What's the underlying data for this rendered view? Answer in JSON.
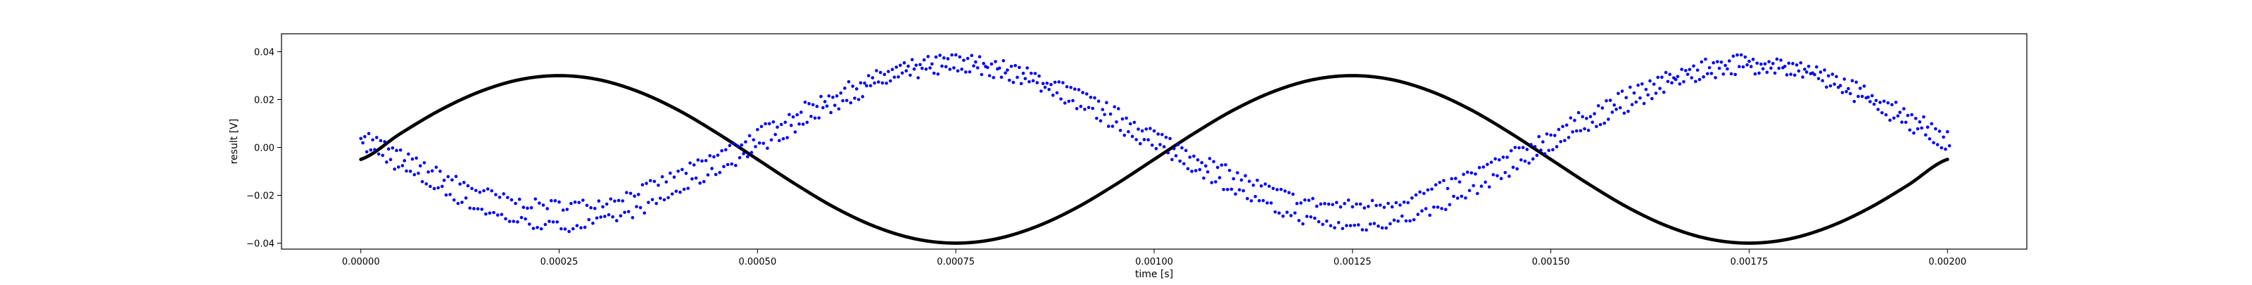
{
  "chart_data": {
    "type": "scatter",
    "title": "",
    "xlabel": "time [s]",
    "ylabel": "result [V]",
    "xlim": [
      -0.0001,
      0.0021
    ],
    "ylim": [
      -0.0425,
      0.0475
    ],
    "grid": false,
    "legend": "none",
    "x_ticks": [
      0.0,
      0.00025,
      0.0005,
      0.00075,
      0.001,
      0.00125,
      0.0015,
      0.00175,
      0.002
    ],
    "x_tick_labels": [
      "0.00000",
      "0.00025",
      "0.00050",
      "0.00075",
      "0.00100",
      "0.00125",
      "0.00150",
      "0.00175",
      "0.00200"
    ],
    "y_ticks": [
      -0.04,
      -0.02,
      0.0,
      0.02,
      0.04
    ],
    "y_tick_labels": [
      "−0.04",
      "−0.02",
      "0.00",
      "0.02",
      "0.04"
    ],
    "series": [
      {
        "color": "#000000",
        "marker": "dense-dots",
        "x": [
          0.0,
          5e-05,
          0.0001,
          0.00015,
          0.0002,
          0.00025,
          0.0003,
          0.00035,
          0.0004,
          0.00045,
          0.0005,
          0.00055,
          0.0006,
          0.00065,
          0.0007,
          0.00075,
          0.0008,
          0.00085,
          0.0009,
          0.00095,
          0.001,
          0.00105,
          0.0011,
          0.00115,
          0.0012,
          0.00125,
          0.0013,
          0.00135,
          0.0014,
          0.00145,
          0.0015,
          0.00155,
          0.0016,
          0.00165,
          0.0017,
          0.00175,
          0.0018,
          0.00185,
          0.0019,
          0.00195,
          0.002
        ],
        "y": [
          -0.005,
          0.0058,
          0.0156,
          0.0233,
          0.0283,
          0.03,
          0.0283,
          0.0233,
          0.0156,
          0.0058,
          -0.005,
          -0.0158,
          -0.0256,
          -0.0333,
          -0.0383,
          -0.04,
          -0.0383,
          -0.0333,
          -0.0256,
          -0.0158,
          -0.005,
          0.0058,
          0.0156,
          0.0233,
          0.0283,
          0.03,
          0.0283,
          0.0233,
          0.0156,
          0.0058,
          -0.005,
          -0.0158,
          -0.0256,
          -0.0333,
          -0.0383,
          -0.04,
          -0.0383,
          -0.0333,
          -0.0256,
          -0.0158,
          -0.005
        ]
      },
      {
        "color": "#0000ff",
        "marker": "dot",
        "x": [
          0.0,
          5e-05,
          0.0001,
          0.00015,
          0.0002,
          0.00025,
          0.0003,
          0.00035,
          0.0004,
          0.00045,
          0.0005,
          0.00055,
          0.0006,
          0.00065,
          0.0007,
          0.00075,
          0.0008,
          0.00085,
          0.0009,
          0.00095,
          0.001,
          0.00105,
          0.0011,
          0.00115,
          0.0012,
          0.00125,
          0.0013,
          0.00135,
          0.0014,
          0.00145,
          0.0015,
          0.00155,
          0.0016,
          0.00165,
          0.0017,
          0.00175,
          0.0018,
          0.00185,
          0.0019,
          0.00195,
          0.002
        ],
        "y_upper": [
          0.006,
          -0.003,
          -0.011,
          -0.018,
          -0.023,
          -0.024,
          -0.023,
          -0.018,
          -0.011,
          -0.003,
          0.006,
          0.015,
          0.023,
          0.03,
          0.035,
          0.037,
          0.035,
          0.03,
          0.023,
          0.015,
          0.006,
          -0.003,
          -0.011,
          -0.018,
          -0.023,
          -0.024,
          -0.023,
          -0.018,
          -0.011,
          -0.003,
          0.006,
          0.015,
          0.023,
          0.03,
          0.035,
          0.037,
          0.035,
          0.03,
          0.023,
          0.015,
          0.006
        ],
        "y_lower": [
          0.0,
          -0.009,
          -0.018,
          -0.026,
          -0.031,
          -0.033,
          -0.031,
          -0.026,
          -0.018,
          -0.009,
          0.0,
          0.009,
          0.018,
          0.026,
          0.031,
          0.033,
          0.031,
          0.026,
          0.018,
          0.009,
          0.0,
          -0.009,
          -0.018,
          -0.026,
          -0.031,
          -0.033,
          -0.031,
          -0.026,
          -0.018,
          -0.009,
          0.0,
          0.009,
          0.018,
          0.026,
          0.031,
          0.033,
          0.031,
          0.026,
          0.018,
          0.009,
          0.0
        ]
      }
    ]
  }
}
